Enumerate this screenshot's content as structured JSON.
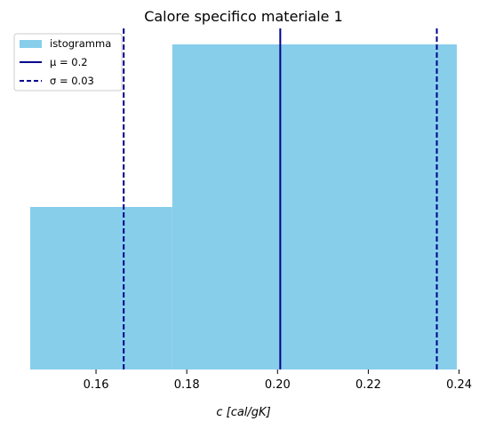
{
  "chart_data": {
    "type": "bar",
    "title": "Calore specifico materiale 1",
    "xlabel": "c [cal/gK]",
    "ylabel": "",
    "xlim": [
      0.1455,
      0.2395
    ],
    "ylim": [
      0,
      2
    ],
    "xticks": [
      0.16,
      0.18,
      0.2,
      0.22,
      0.24
    ],
    "xtick_labels": [
      "0.16",
      "0.18",
      "0.20",
      "0.22",
      "0.24"
    ],
    "bins": [
      {
        "start": 0.1455,
        "end": 0.1768,
        "count": 1
      },
      {
        "start": 0.1768,
        "end": 0.2395,
        "count": 2
      }
    ],
    "mean": 0.2006,
    "sigma": 0.0345,
    "legend": {
      "position": "top-left",
      "entries": [
        {
          "name": "istogramma",
          "style": "patch"
        },
        {
          "name": "μ = 0.2",
          "style": "solid-line"
        },
        {
          "name": "σ = 0.03",
          "style": "dashed-line"
        }
      ]
    },
    "colors": {
      "bar": "#87ceeb",
      "mean_line": "#00008b",
      "sigma_line": "#00008b"
    }
  }
}
